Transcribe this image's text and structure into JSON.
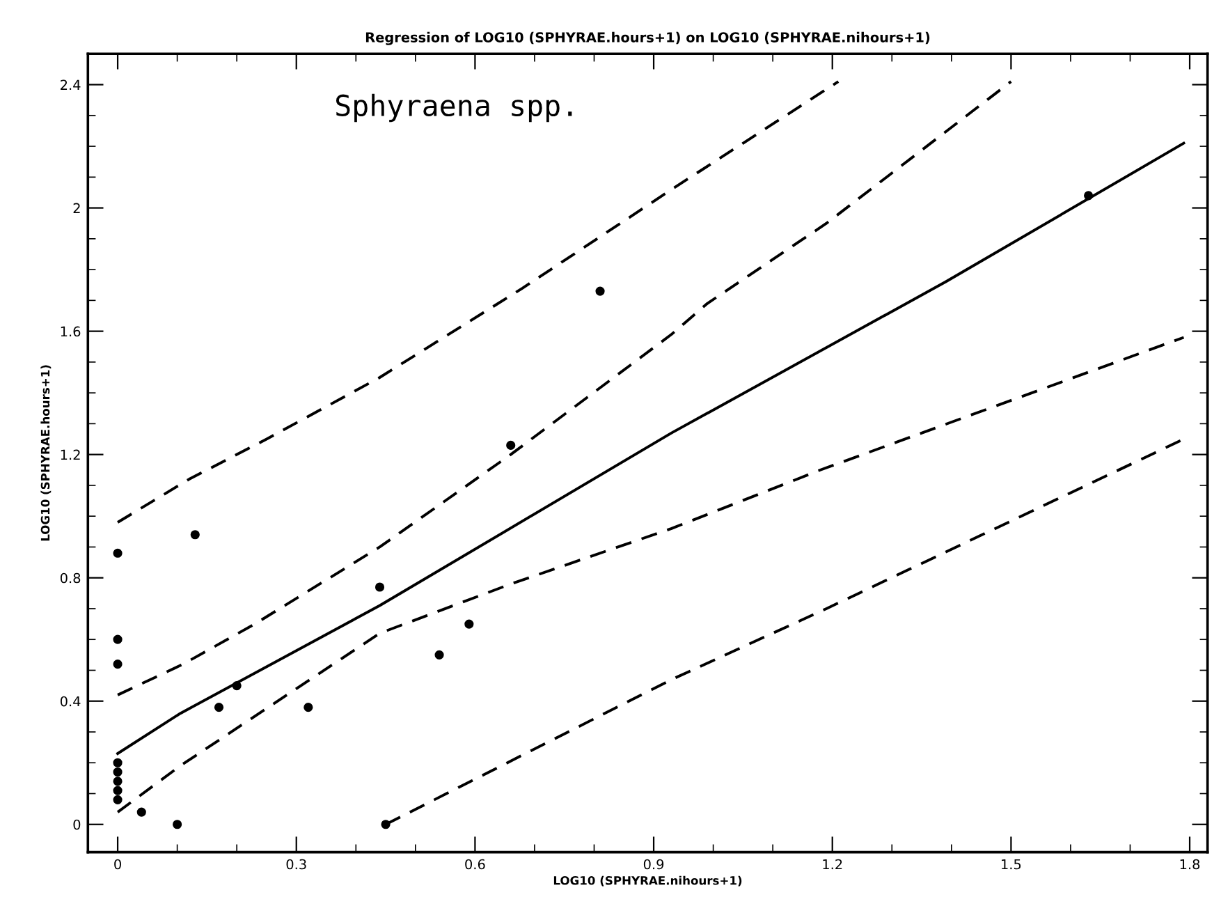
{
  "chart_data": {
    "type": "line",
    "title": "Regression of LOG10 (SPHYRAE.hours+1) on LOG10 (SPHYRAE.nihours+1)",
    "xlabel": "LOG10 (SPHYRAE.nihours+1)",
    "ylabel": "LOG10 (SPHYRAE.hours+1)",
    "annotations": [
      "Sphyraena spp."
    ],
    "xlim": [
      -0.05,
      1.83
    ],
    "ylim": [
      -0.09,
      2.5
    ],
    "xticks": [
      0,
      0.3,
      0.6,
      0.9,
      1.2,
      1.5,
      1.8
    ],
    "yticks": [
      0,
      0.4,
      0.8,
      1.2,
      1.6,
      2,
      2.4
    ],
    "grid": false,
    "series": [
      {
        "type": "scatter",
        "color": "#000000",
        "marker": "circle",
        "x": [
          0,
          0.13,
          0,
          0,
          0.44,
          0.66,
          0.81,
          0.59,
          0.54,
          0.17,
          0.32,
          0.2,
          0,
          0,
          0,
          0,
          0,
          0.04,
          0.1,
          0.45,
          1.63
        ],
        "values": [
          0.88,
          0.94,
          0.6,
          0.52,
          0.77,
          1.23,
          1.73,
          0.65,
          0.55,
          0.38,
          0.38,
          0.45,
          0.2,
          0.17,
          0.14,
          0.11,
          0.08,
          0.04,
          0,
          0,
          2.04
        ]
      },
      {
        "color": "#000000",
        "line_style": "solid",
        "x": [
          0,
          0.105,
          0.44,
          0.93,
          1.39,
          1.79
        ],
        "values": [
          0.23,
          0.36,
          0.71,
          1.27,
          1.76,
          2.21
        ]
      },
      {
        "color": "#000000",
        "line_style": "dashed",
        "x": [
          0,
          0.11,
          0.23,
          0.44,
          0.66,
          0.93,
          0.99,
          1.19,
          1.5
        ],
        "values": [
          0.42,
          0.52,
          0.65,
          0.9,
          1.2,
          1.59,
          1.69,
          1.95,
          2.41
        ]
      },
      {
        "color": "#000000",
        "line_style": "dashed",
        "x": [
          0,
          0.105,
          0.44,
          0.66,
          0.93,
          1.18,
          1.79
        ],
        "values": [
          0.04,
          0.19,
          0.62,
          0.78,
          0.96,
          1.15,
          1.58
        ]
      },
      {
        "color": "#000000",
        "line_style": "dashed",
        "x": [
          0,
          0.12,
          0.25,
          0.44,
          0.68,
          0.93,
          1.21
        ],
        "values": [
          0.98,
          1.12,
          1.25,
          1.45,
          1.74,
          2.06,
          2.41
        ]
      },
      {
        "color": "#000000",
        "line_style": "dashed",
        "x": [
          0.45,
          0.93,
          1.19,
          1.79
        ],
        "values": [
          0,
          0.47,
          0.7,
          1.25
        ]
      }
    ]
  }
}
